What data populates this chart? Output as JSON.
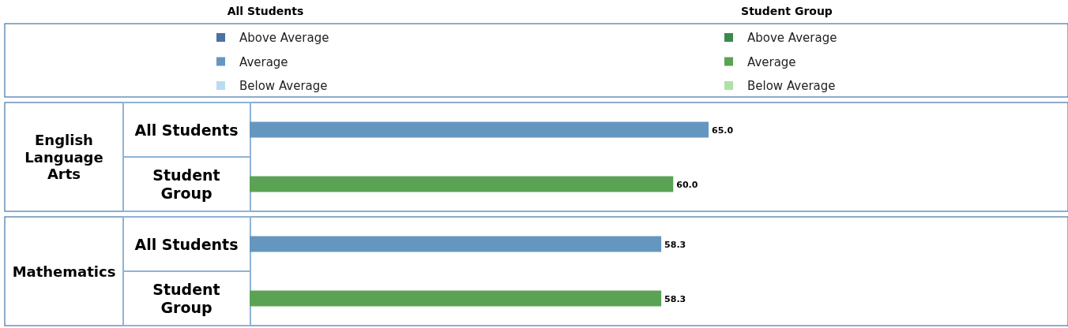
{
  "chart_data": [
    {
      "type": "bar",
      "orientation": "horizontal",
      "title": "English Language Arts",
      "categories": [
        "All Students",
        "Student Group"
      ],
      "legend": "top",
      "annotations": [
        "All Students",
        "Student Group"
      ],
      "series": [
        {
          "name": "Above Average",
          "color": "#4a72a4",
          "values": [
            null,
            null
          ]
        },
        {
          "name": "Average",
          "color": "#6496c0",
          "values": [
            65.0,
            null
          ],
          "value_labels": [
            "65.0",
            null
          ]
        },
        {
          "name": "Below Average",
          "color": "#b8ddf0",
          "values": [
            null,
            null
          ]
        },
        {
          "name": "Above Average",
          "color": "#3a8a4c",
          "values": [
            null,
            null
          ]
        },
        {
          "name": "Average",
          "color": "#5ba354",
          "values": [
            null,
            60.0
          ],
          "value_labels": [
            null,
            "60.0"
          ]
        },
        {
          "name": "Below Average",
          "color": "#b0e0a6",
          "values": [
            null,
            null
          ]
        }
      ]
    },
    {
      "type": "bar",
      "orientation": "horizontal",
      "title": "Mathematics",
      "categories": [
        "All Students",
        "Student Group"
      ],
      "series": [
        {
          "color": "#6496c0",
          "values": [
            58.3,
            null
          ],
          "value_labels": [
            "58.3",
            null
          ]
        },
        {
          "color": "#5ba354",
          "values": [
            null,
            58.3
          ],
          "value_labels": [
            null,
            "58.3"
          ]
        }
      ]
    }
  ]
}
